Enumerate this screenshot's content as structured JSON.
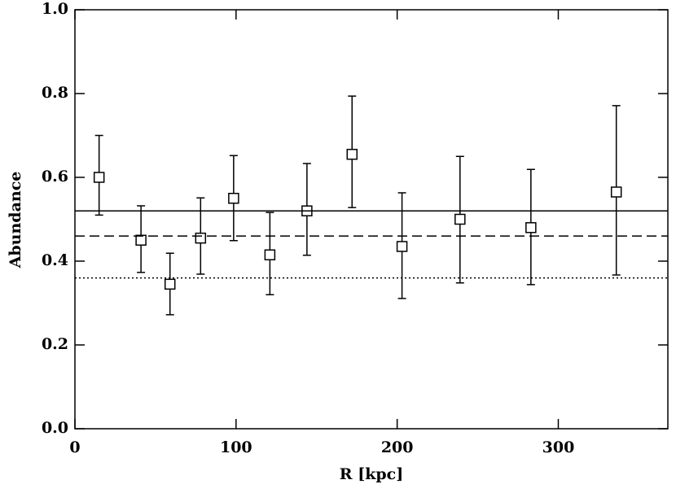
{
  "chart_data": {
    "type": "errorbar-scatter",
    "xlabel": "R [kpc]",
    "ylabel": "Abundance",
    "x": [
      15,
      41,
      59,
      78,
      98.5,
      121,
      144,
      172,
      203,
      239,
      283,
      336
    ],
    "values": [
      0.6,
      0.45,
      0.345,
      0.455,
      0.55,
      0.415,
      0.52,
      0.655,
      0.435,
      0.5,
      0.48,
      0.565
    ],
    "lower": [
      0.51,
      0.373,
      0.272,
      0.369,
      0.449,
      0.32,
      0.414,
      0.528,
      0.311,
      0.348,
      0.344,
      0.367
    ],
    "upper": [
      0.7,
      0.532,
      0.419,
      0.551,
      0.652,
      0.516,
      0.633,
      0.794,
      0.563,
      0.65,
      0.619,
      0.771
    ],
    "color": "#000000",
    "hlines": [
      {
        "value": 0.52,
        "style": "solid"
      },
      {
        "value": 0.46,
        "style": "dashed"
      },
      {
        "value": 0.36,
        "style": "dotted"
      }
    ],
    "xlim": [
      0,
      368
    ],
    "ylim": [
      0,
      1
    ],
    "xticks": [
      0,
      100,
      200,
      300
    ],
    "yticks": [
      {
        "value": 0,
        "label": "0.0"
      },
      0.2,
      0.4,
      0.6,
      0.8,
      {
        "value": 1,
        "label": "1.0"
      }
    ]
  }
}
